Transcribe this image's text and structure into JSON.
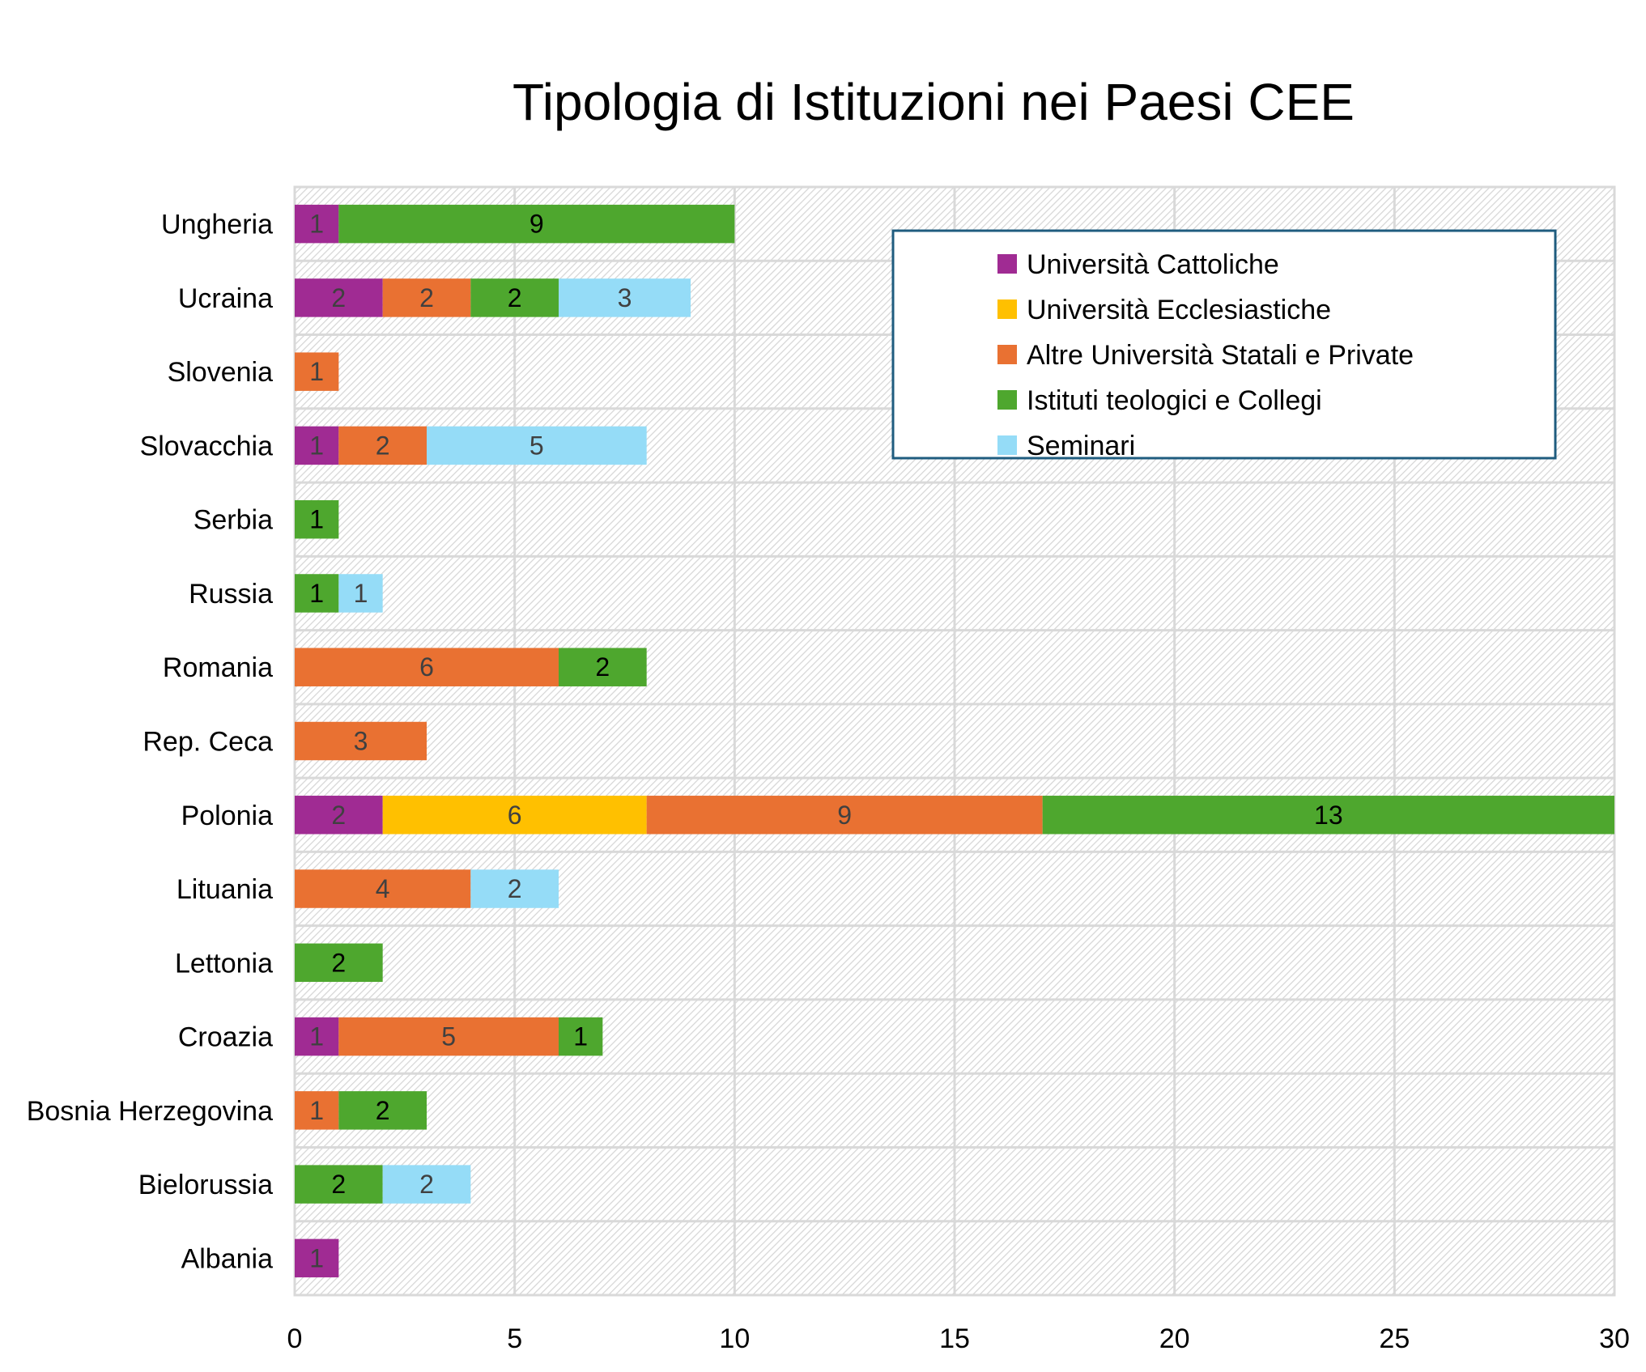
{
  "chart_data": {
    "type": "bar",
    "orientation": "horizontal",
    "stacked": true,
    "title": "Tipologia di Istituzioni nei Paesi CEE",
    "xlabel": "",
    "ylabel": "",
    "xlim": [
      0,
      30
    ],
    "xticks": [
      0,
      5,
      10,
      15,
      20,
      25,
      30
    ],
    "grid": true,
    "legend_position": "top-right",
    "categories": [
      "Ungheria",
      "Ucraina",
      "Slovenia",
      "Slovacchia",
      "Serbia",
      "Russia",
      "Romania",
      "Rep. Ceca",
      "Polonia",
      "Lituania",
      "Lettonia",
      "Croazia",
      "Bosnia Herzegovina",
      "Bielorussia",
      "Albania"
    ],
    "series": [
      {
        "name": "Università Cattoliche",
        "color": "#A02B93",
        "label_color": "#404040",
        "values": [
          1,
          2,
          0,
          1,
          0,
          0,
          0,
          0,
          2,
          0,
          0,
          1,
          0,
          0,
          1
        ]
      },
      {
        "name": "Università Ecclesiastiche",
        "color": "#FFC000",
        "label_color": "#404040",
        "values": [
          0,
          0,
          0,
          0,
          0,
          0,
          0,
          0,
          6,
          0,
          0,
          0,
          0,
          0,
          0
        ]
      },
      {
        "name": "Altre Università Statali e Private",
        "color": "#E97132",
        "label_color": "#404040",
        "values": [
          0,
          2,
          1,
          2,
          0,
          0,
          6,
          3,
          9,
          4,
          0,
          5,
          1,
          0,
          0
        ]
      },
      {
        "name": "Istituti teologici e Collegi",
        "color": "#4EA72E",
        "label_color": "#000000",
        "values": [
          9,
          2,
          0,
          0,
          1,
          1,
          2,
          0,
          13,
          0,
          2,
          1,
          2,
          2,
          0
        ]
      },
      {
        "name": "Seminari",
        "color": "#95DCF7",
        "label_color": "#404040",
        "values": [
          0,
          3,
          0,
          5,
          0,
          1,
          0,
          0,
          0,
          2,
          0,
          0,
          0,
          2,
          0
        ]
      }
    ]
  }
}
